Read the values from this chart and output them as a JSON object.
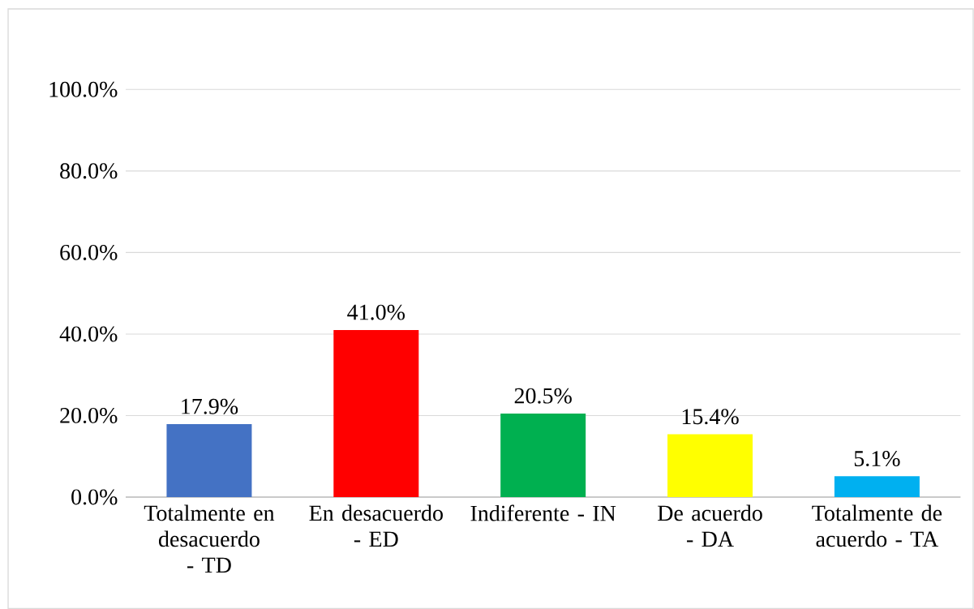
{
  "chart_data": {
    "type": "bar",
    "categories": [
      "Totalmente en desacuerdo - TD",
      "En desacuerdo - ED",
      "Indiferente - IN",
      "De acuerdo - DA",
      "Totalmente de acuerdo - TA"
    ],
    "values": [
      17.9,
      41.0,
      20.5,
      15.4,
      5.1
    ],
    "colors": [
      "#4472c4",
      "#ff0000",
      "#00b050",
      "#ffff00",
      "#00b0f0"
    ],
    "value_labels": [
      "17.9%",
      "41.0%",
      "20.5%",
      "15.4%",
      "5.1%"
    ],
    "ylim": [
      0,
      100
    ],
    "yticks": [
      {
        "value": 0,
        "label": "0.0%"
      },
      {
        "value": 20,
        "label": "20.0%"
      },
      {
        "value": 40,
        "label": "40.0%"
      },
      {
        "value": 60,
        "label": "60.0%"
      },
      {
        "value": 80,
        "label": "80.0%"
      },
      {
        "value": 100,
        "label": "100.0%"
      }
    ],
    "grid": "y"
  }
}
